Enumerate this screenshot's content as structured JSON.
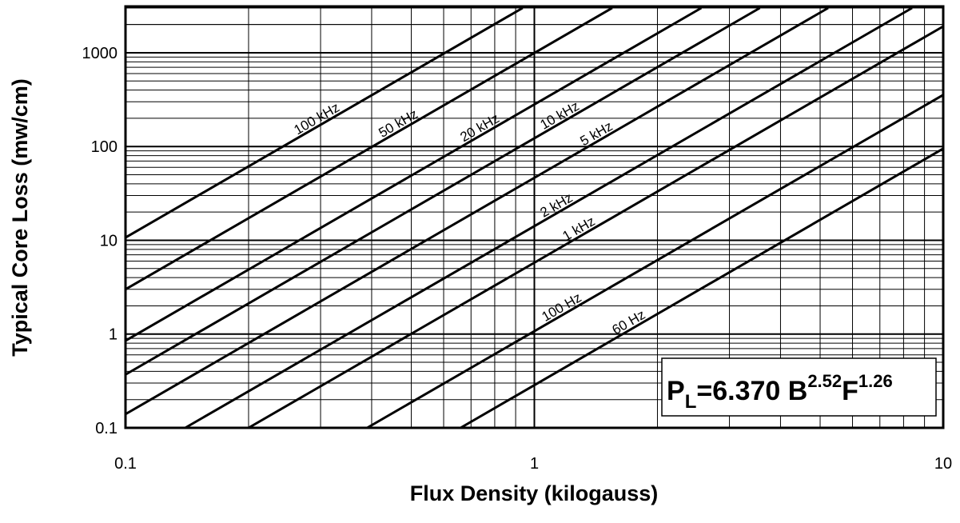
{
  "chart_data": {
    "type": "line",
    "x_label": "Flux Density (kilogauss)",
    "y_label": "Typical Core Loss (mw/cm)",
    "xscale": "log",
    "yscale": "log",
    "grid": true,
    "minor_grid": true,
    "color": "#000000",
    "xlim": [
      0.1,
      10
    ],
    "ylim": [
      0.1,
      3000
    ],
    "xticks": [
      0.1,
      1,
      10
    ],
    "yticks": [
      0.1,
      1,
      10,
      100,
      1000
    ],
    "annotation": {
      "base": "P",
      "sub": "L",
      "eq": "=6.370 B",
      "exp1": "2.52",
      "mid": "F",
      "exp2": "1.26"
    },
    "series": [
      {
        "name": "100 kHz",
        "x": [
          0.1,
          0.936
        ],
        "values": [
          10.7,
          3000
        ]
      },
      {
        "name": "50 kHz",
        "x": [
          0.1,
          1.55
        ],
        "values": [
          3,
          3000
        ]
      },
      {
        "name": "20 kHz",
        "x": [
          0.1,
          2.56
        ],
        "values": [
          0.85,
          3000
        ]
      },
      {
        "name": "10 kHz",
        "x": [
          0.1,
          3.56
        ],
        "values": [
          0.37,
          3000
        ]
      },
      {
        "name": "5 kHz",
        "x": [
          0.1,
          5.23
        ],
        "values": [
          0.14,
          3000
        ]
      },
      {
        "name": "2 kHz",
        "x": [
          0.14,
          8.39
        ],
        "values": [
          0.1,
          3000
        ]
      },
      {
        "name": "1 kHz",
        "x": [
          0.2,
          10
        ],
        "values": [
          0.1,
          1910
        ]
      },
      {
        "name": "100 Hz",
        "x": [
          0.39,
          10
        ],
        "values": [
          0.1,
          355
        ]
      },
      {
        "name": "60 Hz",
        "x": [
          0.66,
          10
        ],
        "values": [
          0.1,
          95
        ]
      }
    ]
  }
}
